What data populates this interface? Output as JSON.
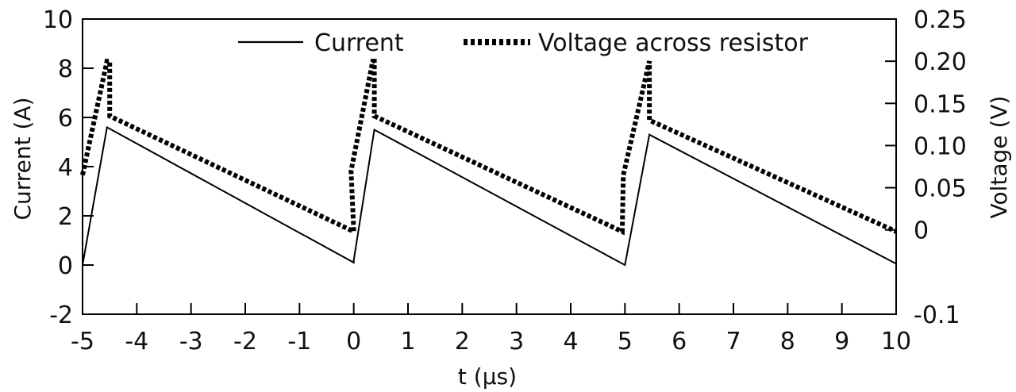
{
  "chart_data": {
    "type": "line",
    "title": "",
    "xlabel": "t (μs)",
    "ylabel_left": "Current  (A)",
    "ylabel_right": "Voltage  (V)",
    "xlim": [
      -5,
      10
    ],
    "ylim_left": [
      -2,
      10
    ],
    "ylim_right": [
      -0.1,
      0.25
    ],
    "x_ticks": [
      "-5",
      "-4",
      "-3",
      "-2",
      "-1",
      "0",
      "1",
      "2",
      "3",
      "4",
      "5",
      "6",
      "7",
      "8",
      "9",
      "10"
    ],
    "y_left_ticks": [
      "-2",
      "0",
      "2",
      "4",
      "6",
      "8",
      "10"
    ],
    "y_right_ticks": [
      "-0.1",
      "0",
      "0.05",
      "0.10",
      "0.15",
      "0.20",
      "0.25"
    ],
    "legend_position": "top",
    "series": [
      {
        "name": "Current",
        "axis": "left",
        "style": "solid",
        "x": [
          -5.0,
          -4.55,
          0.0,
          0.0,
          0.38,
          5.0,
          5.0,
          5.45,
          10.0
        ],
        "y": [
          0.0,
          5.6,
          0.1,
          0.2,
          5.5,
          0.0,
          0.0,
          5.3,
          0.05
        ]
      },
      {
        "name": "Voltage across resistor",
        "axis": "right",
        "style": "dotted",
        "x": [
          -5.0,
          -4.55,
          -4.5,
          -4.5,
          0.0,
          -0.05,
          0.35,
          0.38,
          0.38,
          4.95,
          4.97,
          5.45,
          5.45,
          5.45,
          10.0
        ],
        "y": [
          0.065,
          0.2,
          0.2,
          0.135,
          -0.002,
          0.07,
          0.2,
          0.2,
          0.135,
          -0.002,
          0.065,
          0.2,
          0.2,
          0.13,
          -0.002
        ]
      }
    ]
  }
}
